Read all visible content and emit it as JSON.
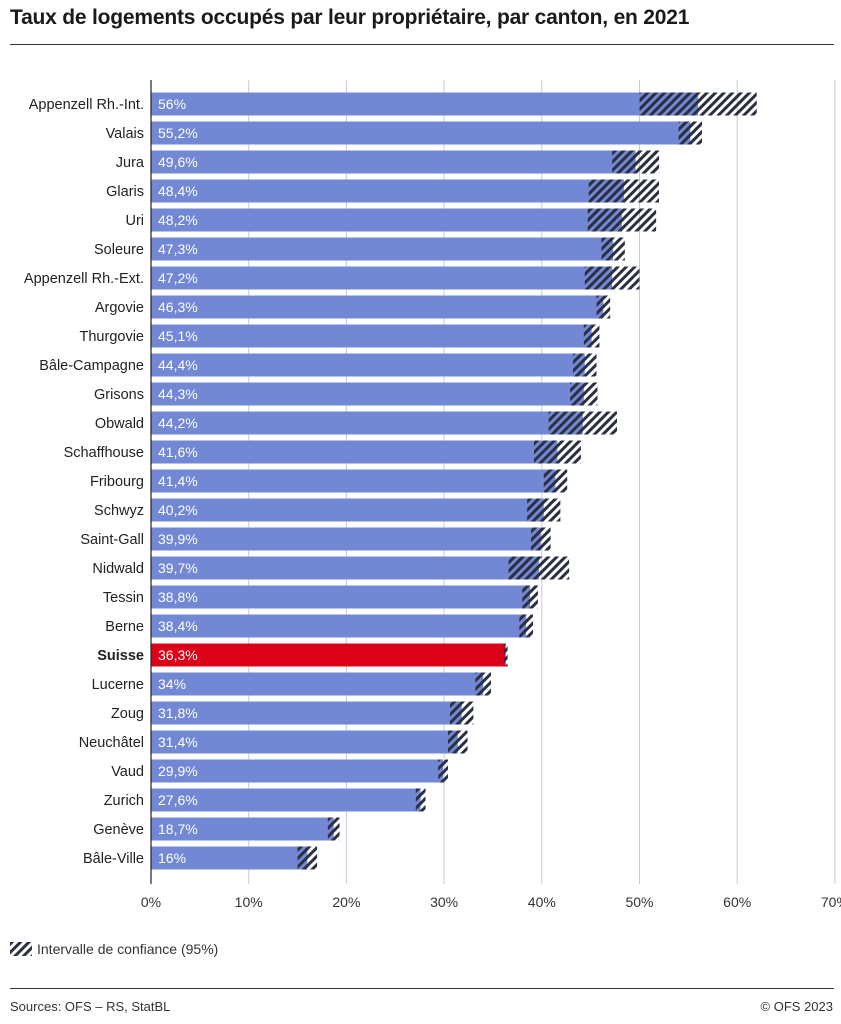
{
  "header": {
    "title": "Taux de logements occupés par leur propriétaire, par canton, en 2021"
  },
  "legend": {
    "ci_label": "Intervalle de confiance (95%)"
  },
  "footer": {
    "source": "Sources: OFS – RS, StatBL",
    "copyright": "© OFS 2023"
  },
  "colors": {
    "bar": "#7388d5",
    "highlight": "#dc0018",
    "hatch": "#2a3040",
    "grid": "#c8c8dc",
    "axis": "#222222"
  },
  "chart_data": {
    "type": "bar",
    "orientation": "horizontal",
    "xlim": [
      0,
      70
    ],
    "xticks": [
      "0%",
      "10%",
      "20%",
      "30%",
      "40%",
      "50%",
      "60%",
      "70%"
    ],
    "grid": true,
    "highlight_category": "Suisse",
    "categories": [
      "Appenzell Rh.-Int.",
      "Valais",
      "Jura",
      "Glaris",
      "Uri",
      "Soleure",
      "Appenzell Rh.-Ext.",
      "Argovie",
      "Thurgovie",
      "Bâle-Campagne",
      "Grisons",
      "Obwald",
      "Schaffhouse",
      "Fribourg",
      "Schwyz",
      "Saint-Gall",
      "Nidwald",
      "Tessin",
      "Berne",
      "Suisse",
      "Lucerne",
      "Zoug",
      "Neuchâtel",
      "Vaud",
      "Zurich",
      "Genève",
      "Bâle-Ville"
    ],
    "value_labels": [
      "56%",
      "55,2%",
      "49,6%",
      "48,4%",
      "48,2%",
      "47,3%",
      "47,2%",
      "46,3%",
      "45,1%",
      "44,4%",
      "44,3%",
      "44,2%",
      "41,6%",
      "41,4%",
      "40,2%",
      "39,9%",
      "39,7%",
      "38,8%",
      "38,4%",
      "36,3%",
      "34%",
      "31,8%",
      "31,4%",
      "29,9%",
      "27,6%",
      "18,7%",
      "16%"
    ],
    "values": [
      56,
      55.2,
      49.6,
      48.4,
      48.2,
      47.3,
      47.2,
      46.3,
      45.1,
      44.4,
      44.3,
      44.2,
      41.6,
      41.4,
      40.2,
      39.9,
      39.7,
      38.8,
      38.4,
      36.3,
      34,
      31.8,
      31.4,
      29.9,
      27.6,
      18.7,
      16
    ],
    "ci_half": [
      6,
      1.2,
      2.4,
      3.6,
      3.5,
      1.2,
      2.8,
      0.7,
      0.8,
      1.2,
      1.4,
      3.5,
      2.4,
      1.2,
      1.7,
      1,
      3.1,
      0.8,
      0.7,
      0.2,
      0.8,
      1.2,
      1.0,
      0.5,
      0.5,
      0.6,
      1.0
    ]
  }
}
